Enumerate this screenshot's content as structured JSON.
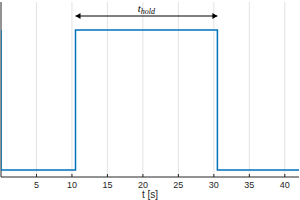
{
  "chart_data": {
    "type": "line",
    "x_label": "t [s]",
    "x": [
      0,
      0,
      10.5,
      10.5,
      30.5,
      30.5,
      42
    ],
    "values": [
      1,
      0,
      0,
      1,
      1,
      0,
      0
    ],
    "color": "#0072bd",
    "xlim": [
      0,
      42
    ],
    "ylim": [
      -0.05,
      1.2
    ],
    "xticks": [
      5,
      10,
      15,
      20,
      25,
      30,
      35,
      40
    ],
    "grid": true,
    "tick_labels": "x",
    "annotations": [
      {
        "text": "t",
        "sub": "hold",
        "x_start": 10.5,
        "x_end": 30.5,
        "y": 1.1
      }
    ]
  }
}
